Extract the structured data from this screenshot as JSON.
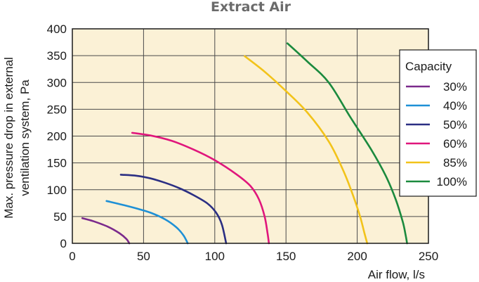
{
  "chart_data": {
    "type": "line",
    "title": "Extract Air",
    "xlabel": "Air flow, l/s",
    "ylabel_line1": "Max. pressure drop in external",
    "ylabel_line2": "ventilation system, Pa",
    "xlim": [
      0,
      250
    ],
    "ylim": [
      0,
      400
    ],
    "xticks": [
      0,
      50,
      100,
      150,
      200,
      250
    ],
    "yticks": [
      0,
      50,
      100,
      150,
      200,
      250,
      300,
      350,
      400
    ],
    "grid": true,
    "plot_background": "#fbf1d6",
    "legend": {
      "title": "Capacity",
      "placement": "right"
    },
    "series": [
      {
        "name": "30%",
        "color": "#7b2a8c",
        "points": [
          [
            7,
            47
          ],
          [
            15,
            41
          ],
          [
            25,
            31
          ],
          [
            33,
            19
          ],
          [
            38,
            8
          ],
          [
            40,
            0
          ]
        ]
      },
      {
        "name": "40%",
        "color": "#1e90d6",
        "points": [
          [
            24,
            79
          ],
          [
            35,
            72
          ],
          [
            45,
            65
          ],
          [
            55,
            57
          ],
          [
            65,
            45
          ],
          [
            73,
            30
          ],
          [
            78,
            15
          ],
          [
            81,
            0
          ]
        ]
      },
      {
        "name": "50%",
        "color": "#2b2f83",
        "points": [
          [
            34,
            128
          ],
          [
            45,
            126
          ],
          [
            55,
            121
          ],
          [
            65,
            113
          ],
          [
            75,
            103
          ],
          [
            85,
            90
          ],
          [
            95,
            74
          ],
          [
            101,
            57
          ],
          [
            105,
            35
          ],
          [
            108,
            0
          ]
        ]
      },
      {
        "name": "60%",
        "color": "#e0167c",
        "points": [
          [
            42,
            206
          ],
          [
            55,
            201
          ],
          [
            70,
            191
          ],
          [
            85,
            175
          ],
          [
            100,
            155
          ],
          [
            115,
            129
          ],
          [
            125,
            107
          ],
          [
            131,
            82
          ],
          [
            135,
            50
          ],
          [
            137,
            20
          ],
          [
            138,
            0
          ]
        ]
      },
      {
        "name": "85%",
        "color": "#f2c31a",
        "points": [
          [
            121,
            349
          ],
          [
            135,
            320
          ],
          [
            150,
            284
          ],
          [
            165,
            244
          ],
          [
            180,
            190
          ],
          [
            190,
            137
          ],
          [
            197,
            90
          ],
          [
            202,
            50
          ],
          [
            205,
            20
          ],
          [
            207,
            0
          ]
        ]
      },
      {
        "name": "100%",
        "color": "#1b8a3e",
        "points": [
          [
            151,
            373
          ],
          [
            165,
            339
          ],
          [
            180,
            300
          ],
          [
            195,
            236
          ],
          [
            210,
            174
          ],
          [
            220,
            126
          ],
          [
            227,
            82
          ],
          [
            232,
            40
          ],
          [
            234,
            15
          ],
          [
            235,
            0
          ]
        ]
      }
    ]
  }
}
